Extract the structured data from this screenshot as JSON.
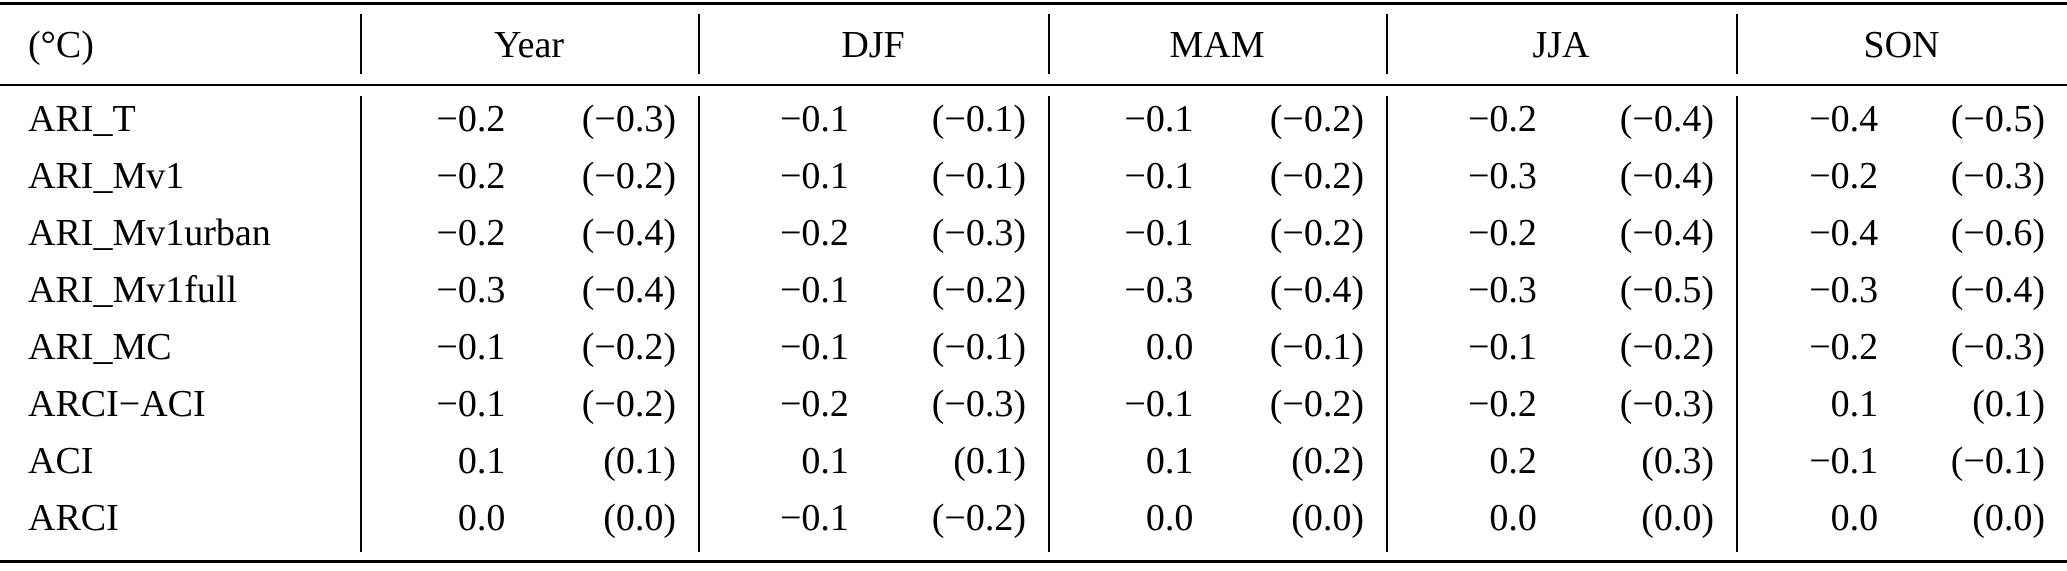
{
  "table": {
    "unit_header": "(°C)",
    "columns": [
      "Year",
      "DJF",
      "MAM",
      "JJA",
      "SON"
    ],
    "rows": [
      {
        "label": "ARI_T",
        "values": [
          [
            "−0.2",
            "(−0.3)"
          ],
          [
            "−0.1",
            "(−0.1)"
          ],
          [
            "−0.1",
            "(−0.2)"
          ],
          [
            "−0.2",
            "(−0.4)"
          ],
          [
            "−0.4",
            "(−0.5)"
          ]
        ]
      },
      {
        "label": "ARI_Mv1",
        "values": [
          [
            "−0.2",
            "(−0.2)"
          ],
          [
            "−0.1",
            "(−0.1)"
          ],
          [
            "−0.1",
            "(−0.2)"
          ],
          [
            "−0.3",
            "(−0.4)"
          ],
          [
            "−0.2",
            "(−0.3)"
          ]
        ]
      },
      {
        "label": "ARI_Mv1urban",
        "values": [
          [
            "−0.2",
            "(−0.4)"
          ],
          [
            "−0.2",
            "(−0.3)"
          ],
          [
            "−0.1",
            "(−0.2)"
          ],
          [
            "−0.2",
            "(−0.4)"
          ],
          [
            "−0.4",
            "(−0.6)"
          ]
        ]
      },
      {
        "label": "ARI_Mv1full",
        "values": [
          [
            "−0.3",
            "(−0.4)"
          ],
          [
            "−0.1",
            "(−0.2)"
          ],
          [
            "−0.3",
            "(−0.4)"
          ],
          [
            "−0.3",
            "(−0.5)"
          ],
          [
            "−0.3",
            "(−0.4)"
          ]
        ]
      },
      {
        "label": "ARI_MC",
        "values": [
          [
            "−0.1",
            "(−0.2)"
          ],
          [
            "−0.1",
            "(−0.1)"
          ],
          [
            "0.0",
            "(−0.1)"
          ],
          [
            "−0.1",
            "(−0.2)"
          ],
          [
            "−0.2",
            "(−0.3)"
          ]
        ]
      },
      {
        "label": "ARCI−ACI",
        "values": [
          [
            "−0.1",
            "(−0.2)"
          ],
          [
            "−0.2",
            "(−0.3)"
          ],
          [
            "−0.1",
            "(−0.2)"
          ],
          [
            "−0.2",
            "(−0.3)"
          ],
          [
            "0.1",
            "(0.1)"
          ]
        ]
      },
      {
        "label": "ACI",
        "values": [
          [
            "0.1",
            "(0.1)"
          ],
          [
            "0.1",
            "(0.1)"
          ],
          [
            "0.1",
            "(0.2)"
          ],
          [
            "0.2",
            "(0.3)"
          ],
          [
            "−0.1",
            "(−0.1)"
          ]
        ]
      },
      {
        "label": "ARCI",
        "values": [
          [
            "0.0",
            "(0.0)"
          ],
          [
            "−0.1",
            "(−0.2)"
          ],
          [
            "0.0",
            "(0.0)"
          ],
          [
            "0.0",
            "(0.0)"
          ],
          [
            "0.0",
            "(0.0)"
          ]
        ]
      }
    ],
    "colors": {
      "text": "#000000",
      "background": "#ffffff",
      "rule": "#000000"
    }
  }
}
